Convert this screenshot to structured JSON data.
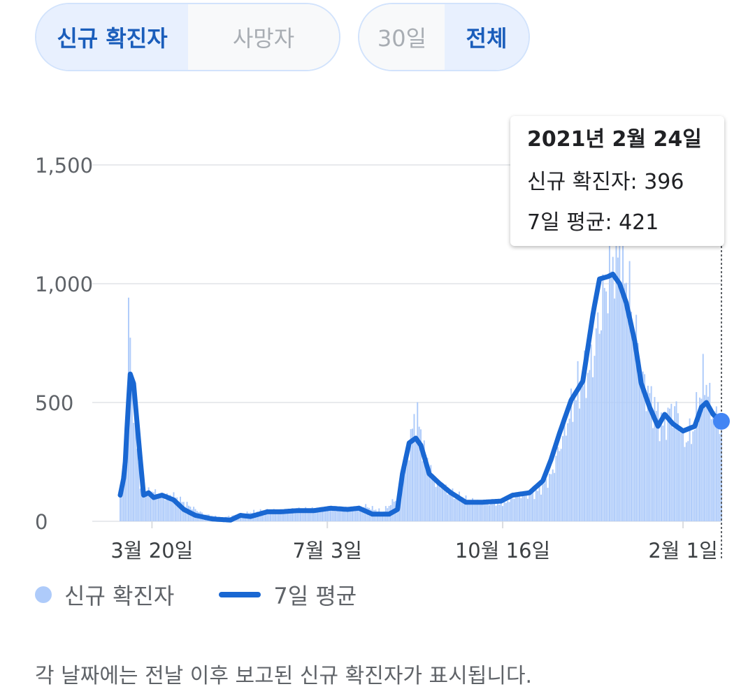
{
  "toggles": {
    "metric": [
      {
        "label": "신규 확진자",
        "active": true
      },
      {
        "label": "사망자",
        "active": false
      }
    ],
    "range": [
      {
        "label": "30일",
        "active": false
      },
      {
        "label": "전체",
        "active": true
      }
    ]
  },
  "tooltip": {
    "date": "2021년 2월 24일",
    "new_cases_label": "신규 확진자",
    "new_cases_value": "396",
    "avg_label": "7일 평균",
    "avg_value": "421"
  },
  "legend": {
    "bars_label": "신규 확진자",
    "line_label": "7일 평균"
  },
  "footnote": "각 날짜에는 전날 이후 보고된 신규 확진자가 표시됩니다.",
  "colors": {
    "bars": "#aecbfa",
    "line": "#1967d2",
    "marker": "#4285f4",
    "grid": "#e8eaed"
  },
  "chart_data": {
    "type": "bar",
    "x_start": "2020-03-01",
    "x_end": "2021-02-24",
    "ylim": [
      0,
      1700
    ],
    "yticks": [
      0,
      500,
      1000,
      1500
    ],
    "ytick_labels": [
      "0",
      "500",
      "1,000",
      "1,500"
    ],
    "xtick_labels": [
      {
        "label": "3월 20일",
        "date": "2020-03-20"
      },
      {
        "label": "7월 3일",
        "date": "2020-07-03"
      },
      {
        "label": "10월 16일",
        "date": "2020-10-16"
      },
      {
        "label": "2월 1일",
        "date": "2021-02-01"
      }
    ],
    "series": [
      {
        "name": "신규 확진자",
        "kind": "bar",
        "points": [
          [
            "2020-03-01",
            110
          ],
          [
            "2020-03-03",
            230
          ],
          [
            "2020-03-05",
            480
          ],
          [
            "2020-03-06",
            800
          ],
          [
            "2020-03-07",
            850
          ],
          [
            "2020-03-08",
            600
          ],
          [
            "2020-03-09",
            450
          ],
          [
            "2020-03-11",
            350
          ],
          [
            "2020-03-13",
            150
          ],
          [
            "2020-03-16",
            110
          ],
          [
            "2020-03-20",
            130
          ],
          [
            "2020-03-25",
            100
          ],
          [
            "2020-04-01",
            110
          ],
          [
            "2020-04-10",
            70
          ],
          [
            "2020-04-20",
            30
          ],
          [
            "2020-05-01",
            15
          ],
          [
            "2020-05-12",
            30
          ],
          [
            "2020-05-20",
            40
          ],
          [
            "2020-06-01",
            45
          ],
          [
            "2020-06-15",
            50
          ],
          [
            "2020-07-01",
            55
          ],
          [
            "2020-07-15",
            50
          ],
          [
            "2020-07-25",
            65
          ],
          [
            "2020-08-05",
            40
          ],
          [
            "2020-08-14",
            100
          ],
          [
            "2020-08-20",
            280
          ],
          [
            "2020-08-24",
            420
          ],
          [
            "2020-08-26",
            440
          ],
          [
            "2020-08-29",
            320
          ],
          [
            "2020-09-05",
            170
          ],
          [
            "2020-09-15",
            120
          ],
          [
            "2020-09-25",
            90
          ],
          [
            "2020-10-05",
            80
          ],
          [
            "2020-10-16",
            75
          ],
          [
            "2020-10-25",
            110
          ],
          [
            "2020-11-05",
            120
          ],
          [
            "2020-11-14",
            190
          ],
          [
            "2020-11-22",
            380
          ],
          [
            "2020-11-30",
            560
          ],
          [
            "2020-12-08",
            650
          ],
          [
            "2020-12-15",
            930
          ],
          [
            "2020-12-20",
            1080
          ],
          [
            "2020-12-24",
            1170
          ],
          [
            "2020-12-25",
            1230
          ],
          [
            "2020-12-28",
            1050
          ],
          [
            "2021-01-03",
            820
          ],
          [
            "2021-01-08",
            590
          ],
          [
            "2021-01-15",
            480
          ],
          [
            "2021-01-20",
            400
          ],
          [
            "2021-01-25",
            470
          ],
          [
            "2021-01-29",
            460
          ],
          [
            "2021-02-01",
            330
          ],
          [
            "2021-02-07",
            380
          ],
          [
            "2021-02-14",
            620
          ],
          [
            "2021-02-17",
            500
          ],
          [
            "2021-02-20",
            450
          ],
          [
            "2021-02-24",
            396
          ]
        ]
      },
      {
        "name": "7일 평균",
        "kind": "line",
        "points": [
          [
            "2020-03-01",
            110
          ],
          [
            "2020-03-03",
            180
          ],
          [
            "2020-03-04",
            250
          ],
          [
            "2020-03-05",
            390
          ],
          [
            "2020-03-07",
            620
          ],
          [
            "2020-03-09",
            580
          ],
          [
            "2020-03-11",
            420
          ],
          [
            "2020-03-13",
            260
          ],
          [
            "2020-03-15",
            110
          ],
          [
            "2020-03-18",
            120
          ],
          [
            "2020-03-21",
            100
          ],
          [
            "2020-03-26",
            110
          ],
          [
            "2020-04-02",
            90
          ],
          [
            "2020-04-08",
            50
          ],
          [
            "2020-04-15",
            25
          ],
          [
            "2020-04-25",
            10
          ],
          [
            "2020-05-06",
            5
          ],
          [
            "2020-05-12",
            25
          ],
          [
            "2020-05-18",
            20
          ],
          [
            "2020-05-28",
            40
          ],
          [
            "2020-06-05",
            40
          ],
          [
            "2020-06-15",
            45
          ],
          [
            "2020-06-25",
            45
          ],
          [
            "2020-07-05",
            55
          ],
          [
            "2020-07-15",
            50
          ],
          [
            "2020-07-22",
            55
          ],
          [
            "2020-07-30",
            30
          ],
          [
            "2020-08-09",
            30
          ],
          [
            "2020-08-14",
            50
          ],
          [
            "2020-08-17",
            200
          ],
          [
            "2020-08-21",
            330
          ],
          [
            "2020-08-25",
            350
          ],
          [
            "2020-08-28",
            320
          ],
          [
            "2020-09-02",
            200
          ],
          [
            "2020-09-08",
            160
          ],
          [
            "2020-09-15",
            120
          ],
          [
            "2020-09-24",
            80
          ],
          [
            "2020-10-03",
            80
          ],
          [
            "2020-10-15",
            85
          ],
          [
            "2020-10-22",
            110
          ],
          [
            "2020-11-01",
            120
          ],
          [
            "2020-11-09",
            170
          ],
          [
            "2020-11-14",
            260
          ],
          [
            "2020-11-19",
            370
          ],
          [
            "2020-11-26",
            510
          ],
          [
            "2020-12-03",
            590
          ],
          [
            "2020-12-09",
            870
          ],
          [
            "2020-12-13",
            1020
          ],
          [
            "2020-12-18",
            1030
          ],
          [
            "2020-12-21",
            1040
          ],
          [
            "2020-12-25",
            1000
          ],
          [
            "2020-12-29",
            920
          ],
          [
            "2021-01-03",
            760
          ],
          [
            "2021-01-07",
            580
          ],
          [
            "2021-01-12",
            480
          ],
          [
            "2021-01-17",
            400
          ],
          [
            "2021-01-21",
            450
          ],
          [
            "2021-01-26",
            410
          ],
          [
            "2021-02-01",
            380
          ],
          [
            "2021-02-08",
            400
          ],
          [
            "2021-02-12",
            480
          ],
          [
            "2021-02-15",
            500
          ],
          [
            "2021-02-19",
            450
          ],
          [
            "2021-02-24",
            421
          ]
        ]
      }
    ],
    "selected": {
      "date": "2021-02-24",
      "bar_value": 396,
      "line_value": 421
    }
  }
}
